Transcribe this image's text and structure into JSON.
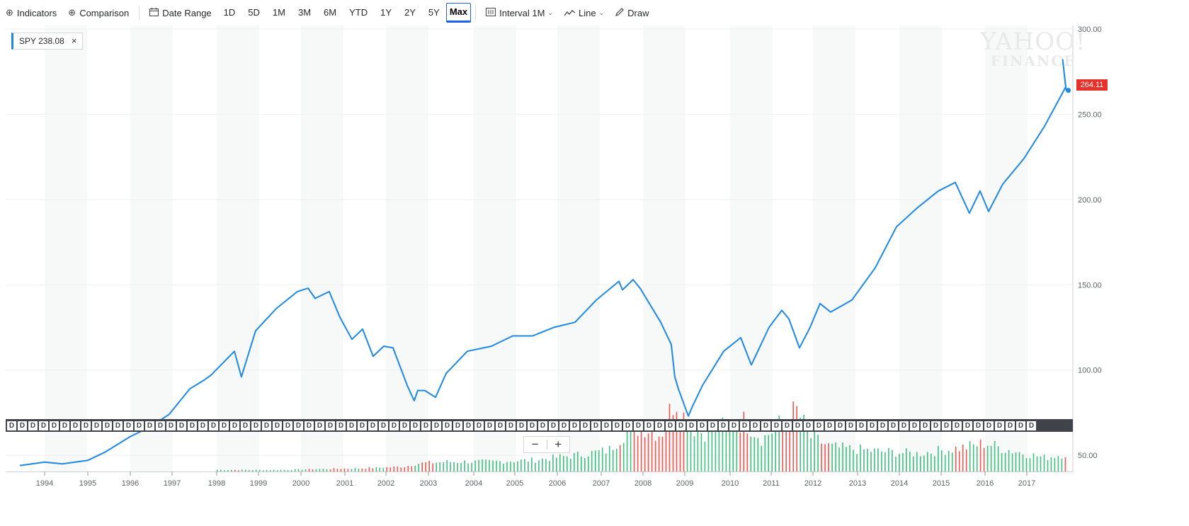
{
  "toolbar": {
    "indicators": "Indicators",
    "comparison": "Comparison",
    "date_range": "Date Range",
    "ranges": [
      "1D",
      "5D",
      "1M",
      "3M",
      "6M",
      "YTD",
      "1Y",
      "2Y",
      "5Y",
      "Max"
    ],
    "active_range": "Max",
    "interval": "Interval",
    "interval_value": "1M",
    "chart_type": "Line",
    "draw": "Draw"
  },
  "legend": {
    "label": "SPY 238.08",
    "close": "×"
  },
  "watermark": {
    "line1": "YAHOO!",
    "line2": "FINANCE"
  },
  "price_tag": "264.11",
  "events": {
    "marker": "D",
    "count": 97
  },
  "zoom": {
    "minus": "−",
    "plus": "+"
  },
  "colors": {
    "line": "#1e88e5",
    "vol_up": "#3fbf7f",
    "vol_down": "#f0554f",
    "band": "#f7f8f8",
    "tag": "#e7322c"
  },
  "chart_data": {
    "type": "line",
    "ylim": [
      40,
      300
    ],
    "y_ticks": [
      "300.00",
      "250.00",
      "200.00",
      "150.00",
      "100.00",
      "50.00"
    ],
    "x_ticks": [
      "1994",
      "1995",
      "1996",
      "1997",
      "1998",
      "1999",
      "2000",
      "2001",
      "2002",
      "2003",
      "2004",
      "2005",
      "2006",
      "2007",
      "2008",
      "2009",
      "2010",
      "2011",
      "2012",
      "2013",
      "2014",
      "2015",
      "2016",
      "2017"
    ],
    "series": [
      {
        "x": [
          "1993-06",
          "1994-01",
          "1994-06",
          "1995-01",
          "1995-06",
          "1996-01",
          "1996-06",
          "1996-12",
          "1997-06",
          "1997-10",
          "1997-12",
          "1998-06",
          "1998-08",
          "1998-12",
          "1999-06",
          "1999-12",
          "2000-03",
          "2000-05",
          "2000-09",
          "2000-12",
          "2001-03",
          "2001-06",
          "2001-09",
          "2001-12",
          "2002-03",
          "2002-07",
          "2002-09",
          "2002-10",
          "2002-12",
          "2003-03",
          "2003-06",
          "2003-12",
          "2004-06",
          "2004-12",
          "2005-06",
          "2005-12",
          "2006-06",
          "2006-12",
          "2007-06",
          "2007-07",
          "2007-10",
          "2007-12",
          "2008-06",
          "2008-09",
          "2008-10",
          "2008-11",
          "2009-02",
          "2009-03",
          "2009-06",
          "2009-12",
          "2010-04",
          "2010-07",
          "2010-12",
          "2011-04",
          "2011-06",
          "2011-09",
          "2011-12",
          "2012-03",
          "2012-06",
          "2012-12",
          "2013-06",
          "2013-12",
          "2014-06",
          "2014-12",
          "2015-05",
          "2015-09",
          "2015-12",
          "2016-02",
          "2016-06",
          "2016-12",
          "2017-06",
          "2017-12",
          "2018-01",
          "2018-02"
        ],
        "y": [
          44,
          46,
          45,
          47,
          52,
          61,
          66,
          74,
          89,
          94,
          97,
          111,
          96,
          123,
          136,
          146,
          148,
          142,
          146,
          131,
          118,
          124,
          108,
          114,
          113,
          91,
          82,
          88,
          88,
          84,
          98,
          111,
          114,
          120,
          120,
          125,
          128,
          141,
          152,
          147,
          153,
          148,
          128,
          115,
          96,
          89,
          73,
          78,
          91,
          111,
          119,
          103,
          125,
          135,
          130,
          113,
          125,
          139,
          134,
          141,
          160,
          184,
          195,
          205,
          210,
          192,
          205,
          193,
          209,
          224,
          243,
          266,
          282,
          264
        ]
      }
    ],
    "volume": [
      {
        "x": "1998-06",
        "v": 0.02
      },
      {
        "x": "1999-06",
        "v": 0.02
      },
      {
        "x": "2000-06",
        "v": 0.03
      },
      {
        "x": "2001-06",
        "v": 0.04
      },
      {
        "x": "2002-06",
        "v": 0.06
      },
      {
        "x": "2002-10",
        "v": 0.1
      },
      {
        "x": "2003-06",
        "v": 0.12
      },
      {
        "x": "2004-06",
        "v": 0.12
      },
      {
        "x": "2005-06",
        "v": 0.14
      },
      {
        "x": "2006-06",
        "v": 0.2
      },
      {
        "x": "2007-03",
        "v": 0.26
      },
      {
        "x": "2007-08",
        "v": 0.5
      },
      {
        "x": "2008-01",
        "v": 0.55
      },
      {
        "x": "2008-06",
        "v": 0.45
      },
      {
        "x": "2008-10",
        "v": 0.92
      },
      {
        "x": "2008-12",
        "v": 0.7
      },
      {
        "x": "2009-03",
        "v": 0.55
      },
      {
        "x": "2009-06",
        "v": 0.48
      },
      {
        "x": "2010-05",
        "v": 0.62
      },
      {
        "x": "2010-10",
        "v": 0.4
      },
      {
        "x": "2011-08",
        "v": 0.75
      },
      {
        "x": "2011-12",
        "v": 0.42
      },
      {
        "x": "2012-06",
        "v": 0.3
      },
      {
        "x": "2013-06",
        "v": 0.25
      },
      {
        "x": "2014-06",
        "v": 0.22
      },
      {
        "x": "2015-08",
        "v": 0.3
      },
      {
        "x": "2016-01",
        "v": 0.35
      },
      {
        "x": "2016-06",
        "v": 0.28
      },
      {
        "x": "2017-06",
        "v": 0.17
      },
      {
        "x": "2018-02",
        "v": 0.22
      }
    ]
  }
}
